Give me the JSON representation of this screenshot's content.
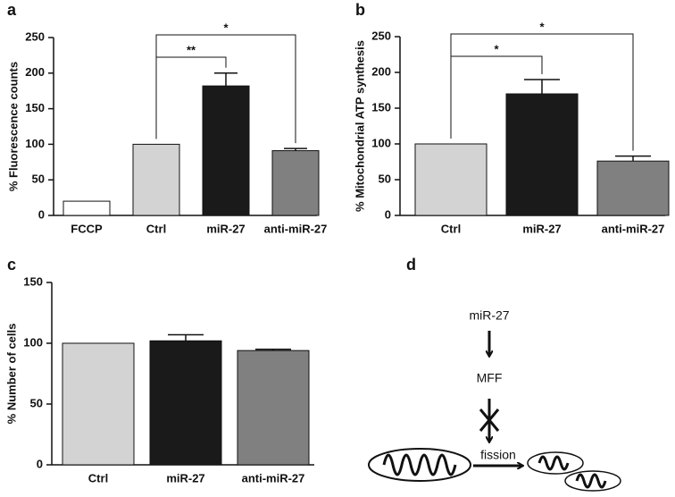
{
  "chart_data": [
    {
      "type": "bar",
      "panel_label": "a",
      "ylabel": "% Fluorescence counts",
      "categories": [
        "FCCP",
        "Ctrl",
        "miR-27",
        "anti-miR-27"
      ],
      "values": [
        20,
        100,
        182,
        91
      ],
      "errors": [
        null,
        null,
        18,
        3
      ],
      "colors": [
        "#ffffff",
        "#d3d3d3",
        "#1a1a1a",
        "#808080"
      ],
      "ylim": [
        0,
        250
      ],
      "yticks": [
        0,
        50,
        100,
        150,
        200,
        250
      ],
      "annotations": [
        {
          "label": "**",
          "between": [
            "Ctrl",
            "miR-27"
          ]
        },
        {
          "label": "*",
          "between": [
            "Ctrl",
            "anti-miR-27"
          ]
        }
      ]
    },
    {
      "type": "bar",
      "panel_label": "b",
      "ylabel": "% Mitochondrial ATP synthesis",
      "categories": [
        "Ctrl",
        "miR-27",
        "anti-miR-27"
      ],
      "values": [
        100,
        170,
        76
      ],
      "errors": [
        null,
        20,
        7
      ],
      "colors": [
        "#d3d3d3",
        "#1a1a1a",
        "#808080"
      ],
      "ylim": [
        0,
        250
      ],
      "yticks": [
        0,
        50,
        100,
        150,
        200,
        250
      ],
      "annotations": [
        {
          "label": "*",
          "between": [
            "Ctrl",
            "miR-27"
          ]
        },
        {
          "label": "*",
          "between": [
            "Ctrl",
            "anti-miR-27"
          ]
        }
      ]
    },
    {
      "type": "bar",
      "panel_label": "c",
      "ylabel": "% Number of cells",
      "categories": [
        "Ctrl",
        "miR-27",
        "anti-miR-27"
      ],
      "values": [
        100,
        102,
        94
      ],
      "errors": [
        null,
        5,
        1
      ],
      "colors": [
        "#d3d3d3",
        "#1a1a1a",
        "#808080"
      ],
      "ylim": [
        0,
        150
      ],
      "yticks": [
        0,
        50,
        100,
        150
      ]
    }
  ],
  "diagram": {
    "panel_label": "d",
    "nodes": [
      "miR-27",
      "MFF"
    ],
    "edge_label": "fission"
  }
}
